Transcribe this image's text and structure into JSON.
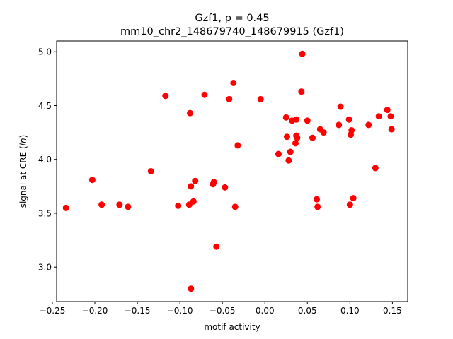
{
  "chart_data": {
    "type": "scatter",
    "title_line1": "Gzf1, ρ = 0.45",
    "title_line2": "mm10_chr2_148679740_148679915 (Gzf1)",
    "xlabel": "motif activity",
    "ylabel_prefix": "signal at CRE (",
    "ylabel_italic": "ln",
    "ylabel_suffix": ")",
    "xlim": [
      -0.245,
      0.168
    ],
    "ylim": [
      2.68,
      5.1
    ],
    "x_ticks": [
      -0.25,
      -0.2,
      -0.15,
      -0.1,
      -0.05,
      0.0,
      0.05,
      0.1,
      0.15
    ],
    "x_tick_labels": [
      "−0.25",
      "−0.20",
      "−0.15",
      "−0.10",
      "−0.05",
      "0.00",
      "0.05",
      "0.10",
      "0.15"
    ],
    "y_ticks": [
      3.0,
      3.5,
      4.0,
      4.5,
      5.0
    ],
    "y_tick_labels": [
      "3.0",
      "3.5",
      "4.0",
      "4.5",
      "5.0"
    ],
    "marker_color": "#ff0000",
    "grid": false,
    "points": [
      {
        "x": -0.234,
        "y": 3.55
      },
      {
        "x": -0.203,
        "y": 3.81
      },
      {
        "x": -0.192,
        "y": 3.58
      },
      {
        "x": -0.171,
        "y": 3.58
      },
      {
        "x": -0.161,
        "y": 3.56
      },
      {
        "x": -0.134,
        "y": 3.89
      },
      {
        "x": -0.117,
        "y": 4.59
      },
      {
        "x": -0.102,
        "y": 3.57
      },
      {
        "x": -0.089,
        "y": 3.58
      },
      {
        "x": -0.088,
        "y": 4.43
      },
      {
        "x": -0.087,
        "y": 3.75
      },
      {
        "x": -0.087,
        "y": 2.8
      },
      {
        "x": -0.084,
        "y": 3.61
      },
      {
        "x": -0.082,
        "y": 3.8
      },
      {
        "x": -0.071,
        "y": 4.6
      },
      {
        "x": -0.061,
        "y": 3.77
      },
      {
        "x": -0.06,
        "y": 3.79
      },
      {
        "x": -0.057,
        "y": 3.19
      },
      {
        "x": -0.047,
        "y": 3.74
      },
      {
        "x": -0.042,
        "y": 4.56
      },
      {
        "x": -0.037,
        "y": 4.71
      },
      {
        "x": -0.035,
        "y": 3.56
      },
      {
        "x": -0.032,
        "y": 4.13
      },
      {
        "x": -0.005,
        "y": 4.56
      },
      {
        "x": 0.016,
        "y": 4.05
      },
      {
        "x": 0.025,
        "y": 4.39
      },
      {
        "x": 0.026,
        "y": 4.21
      },
      {
        "x": 0.028,
        "y": 3.99
      },
      {
        "x": 0.03,
        "y": 4.07
      },
      {
        "x": 0.032,
        "y": 4.36
      },
      {
        "x": 0.036,
        "y": 4.15
      },
      {
        "x": 0.037,
        "y": 4.22
      },
      {
        "x": 0.037,
        "y": 4.37
      },
      {
        "x": 0.038,
        "y": 4.2
      },
      {
        "x": 0.043,
        "y": 4.63
      },
      {
        "x": 0.044,
        "y": 4.98
      },
      {
        "x": 0.05,
        "y": 4.36
      },
      {
        "x": 0.056,
        "y": 4.2
      },
      {
        "x": 0.061,
        "y": 3.63
      },
      {
        "x": 0.062,
        "y": 3.56
      },
      {
        "x": 0.065,
        "y": 4.28
      },
      {
        "x": 0.069,
        "y": 4.25
      },
      {
        "x": 0.087,
        "y": 4.32
      },
      {
        "x": 0.089,
        "y": 4.49
      },
      {
        "x": 0.099,
        "y": 4.37
      },
      {
        "x": 0.1,
        "y": 3.58
      },
      {
        "x": 0.101,
        "y": 4.23
      },
      {
        "x": 0.102,
        "y": 4.27
      },
      {
        "x": 0.104,
        "y": 3.64
      },
      {
        "x": 0.122,
        "y": 4.32
      },
      {
        "x": 0.13,
        "y": 3.92
      },
      {
        "x": 0.134,
        "y": 4.4
      },
      {
        "x": 0.144,
        "y": 4.46
      },
      {
        "x": 0.148,
        "y": 4.4
      },
      {
        "x": 0.149,
        "y": 4.28
      }
    ]
  }
}
